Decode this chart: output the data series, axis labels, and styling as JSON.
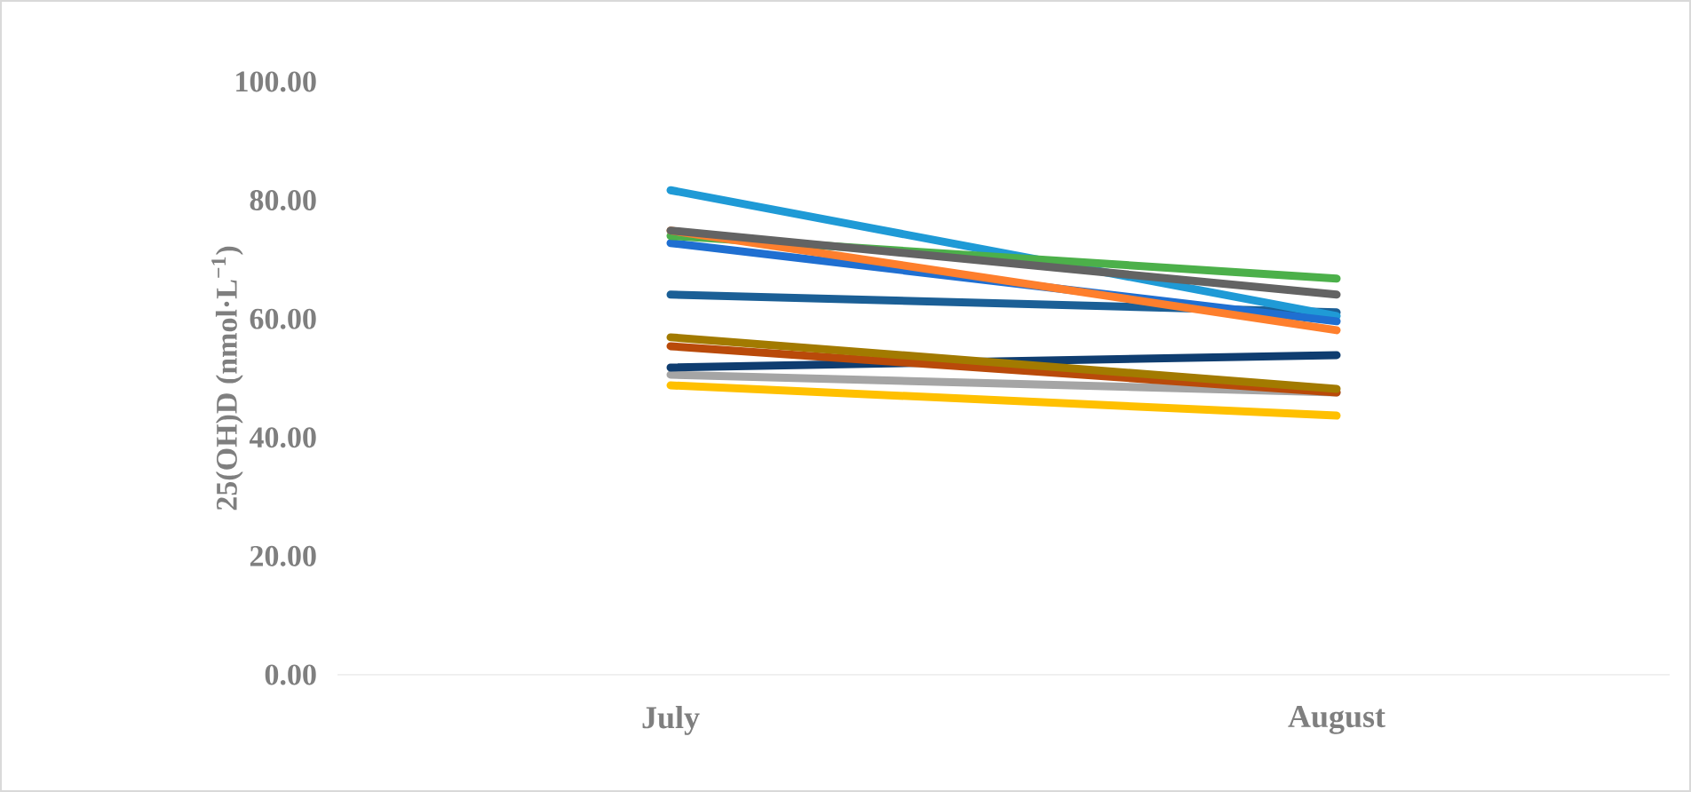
{
  "chart_data": {
    "type": "line",
    "ylabel": "25(OH)D (nmol·L$^{−1}$)",
    "categories": [
      "July",
      "August"
    ],
    "ylim": [
      0,
      100
    ],
    "yticks": [
      {
        "value": 0,
        "label": "0.00"
      },
      {
        "value": 20,
        "label": "20.00"
      },
      {
        "value": 40,
        "label": "40.00"
      },
      {
        "value": 60,
        "label": "60.00"
      },
      {
        "value": 80,
        "label": "80.00"
      },
      {
        "value": 100,
        "label": "100.00"
      }
    ],
    "series": [
      {
        "color": "#ffc000",
        "values": [
          48.8,
          43.7
        ]
      },
      {
        "color": "#a5a5a5",
        "values": [
          50.6,
          47.6
        ]
      },
      {
        "color": "#0f3d70",
        "values": [
          51.8,
          53.9
        ]
      },
      {
        "color": "#b94a0a",
        "values": [
          55.4,
          47.6
        ]
      },
      {
        "color": "#a27a00",
        "values": [
          56.9,
          48.2
        ]
      },
      {
        "color": "#1b5f96",
        "values": [
          64.1,
          61.1
        ]
      },
      {
        "color": "#1f9ad6",
        "values": [
          81.7,
          60.5
        ]
      },
      {
        "color": "#1f6fd1",
        "values": [
          72.8,
          59.6
        ]
      },
      {
        "color": "#4cb04a",
        "values": [
          74.0,
          66.8
        ]
      },
      {
        "color": "#fe7f2d",
        "values": [
          74.9,
          58.1
        ]
      },
      {
        "color": "#636363",
        "values": [
          74.9,
          64.1
        ]
      }
    ]
  }
}
